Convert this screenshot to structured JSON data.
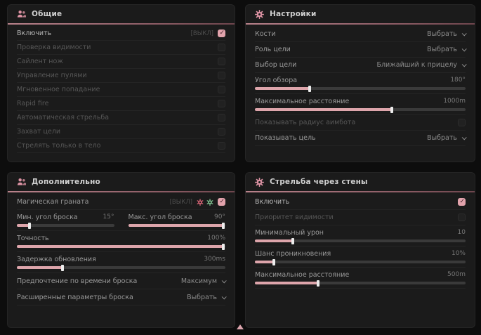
{
  "ui": {
    "colors": {
      "accent": "#e2a3ac",
      "underline": "#a5737c",
      "panel_bg": "#1b1b1b",
      "green_icon": "#7bb88a",
      "red_icon": "#cf6272"
    },
    "footer_indicator_icon": "triangle-up-icon"
  },
  "panels": {
    "general": {
      "title": "Общие",
      "icon": "users-icon",
      "rows": [
        {
          "label": "Включить",
          "tag": "[ВЫКЛ]",
          "checked": true
        },
        {
          "label": "Проверка видимости",
          "checked": false
        },
        {
          "label": "Сайлент нож",
          "checked": false
        },
        {
          "label": "Управление пулями",
          "checked": false
        },
        {
          "label": "Мгновенное попадание",
          "checked": false
        },
        {
          "label": "Rapid fire",
          "checked": false
        },
        {
          "label": "Автоматическая стрельба",
          "checked": false
        },
        {
          "label": "Захват цели",
          "checked": false
        },
        {
          "label": "Стрелять только в тело",
          "checked": false
        }
      ]
    },
    "settings": {
      "title": "Настройки",
      "icon": "gear-icon",
      "bones": {
        "label": "Кости",
        "value": "Выбрать"
      },
      "target_role": {
        "label": "Роль цели",
        "value": "Выбрать"
      },
      "target_select": {
        "label": "Выбор цели",
        "value": "Ближайший к прицелу"
      },
      "fov": {
        "label": "Угол обзора",
        "value": "180°",
        "percent": 26
      },
      "max_distance": {
        "label": "Максимальное расстояние",
        "value": "1000m",
        "percent": 65
      },
      "show_radius": {
        "label": "Показывать радиус аимбота",
        "checked": false
      },
      "show_target": {
        "label": "Показывать цель",
        "value": "Выбрать"
      }
    },
    "additional": {
      "title": "Дополнительно",
      "icon": "users-icon",
      "magic_grenade": {
        "label": "Магическая граната",
        "tag": "[ВЫКЛ]",
        "checked": true,
        "icons": [
          "red-status-icon",
          "green-status-icon"
        ]
      },
      "min_throw": {
        "label": "Мин. угол броска",
        "value": "15°",
        "percent": 13
      },
      "max_throw": {
        "label": "Макс. угол броска",
        "value": "90°",
        "percent": 98
      },
      "accuracy": {
        "label": "Точность",
        "value": "100%",
        "percent": 99
      },
      "update_delay": {
        "label": "Задержка обновления",
        "value": "300ms",
        "percent": 22
      },
      "throw_time": {
        "label": "Предпочтение по времени броска",
        "value": "Максимум"
      },
      "advanced_throw": {
        "label": "Расширенные параметры броска",
        "value": "Выбрать"
      }
    },
    "wallbang": {
      "title": "Стрельба через стены",
      "icon": "gear-icon",
      "enable": {
        "label": "Включить",
        "checked": true
      },
      "visibility_priority": {
        "label": "Приоритет видимости",
        "checked": false
      },
      "min_damage": {
        "label": "Минимальный урон",
        "value": "10",
        "percent": 18
      },
      "penetration": {
        "label": "Шанс проникновения",
        "value": "10%",
        "percent": 9
      },
      "max_distance": {
        "label": "Максимальное расстояние",
        "value": "500m",
        "percent": 30
      }
    }
  }
}
